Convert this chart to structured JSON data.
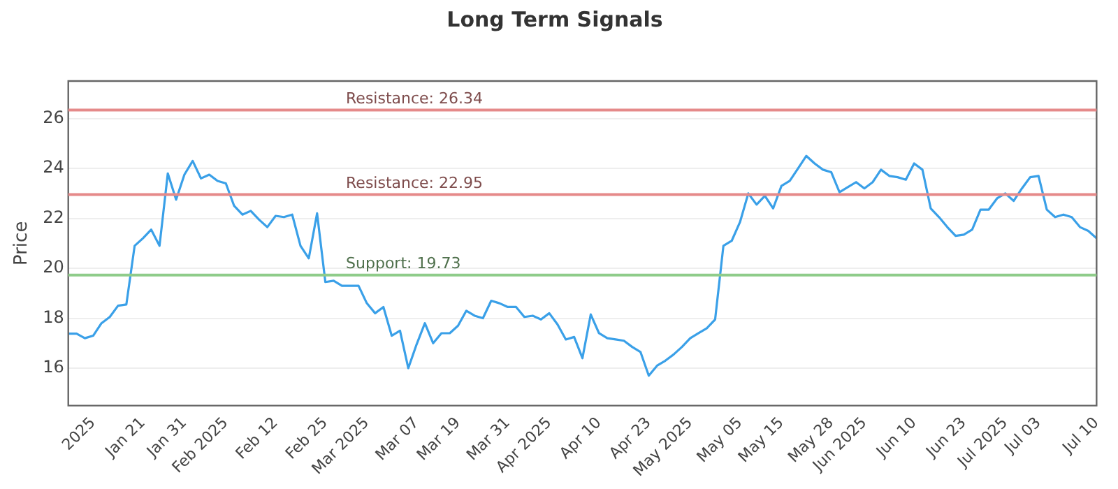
{
  "chart_data": {
    "type": "line",
    "title": "Long Term Signals",
    "ylabel": "Price",
    "categories": [
      null,
      null,
      null,
      "2025",
      null,
      null,
      null,
      null,
      null,
      "Jan 21",
      null,
      null,
      null,
      null,
      "Jan 31",
      null,
      null,
      null,
      null,
      "Feb 2025",
      null,
      null,
      null,
      null,
      null,
      "Feb 12",
      null,
      null,
      null,
      null,
      null,
      "Feb 25",
      null,
      null,
      null,
      null,
      "Mar 2025",
      null,
      null,
      null,
      null,
      null,
      "Mar 07",
      null,
      null,
      null,
      null,
      "Mar 19",
      null,
      null,
      null,
      null,
      null,
      "Mar 31",
      null,
      null,
      null,
      null,
      "Apr 2025",
      null,
      null,
      null,
      null,
      null,
      "Apr 10",
      null,
      null,
      null,
      null,
      null,
      "Apr 23",
      null,
      null,
      null,
      null,
      "May 2025",
      null,
      null,
      null,
      null,
      null,
      "May 05",
      null,
      null,
      null,
      null,
      "May 15",
      null,
      null,
      null,
      null,
      null,
      "May 28",
      null,
      null,
      null,
      "Jun 2025",
      null,
      null,
      null,
      null,
      null,
      "Jun 10",
      null,
      null,
      null,
      null,
      null,
      "Jun 23",
      null,
      null,
      null,
      null,
      "Jul 2025",
      null,
      null,
      null,
      "Jul 03",
      null,
      null,
      null,
      null,
      null,
      null,
      "Jul 10"
    ],
    "series": [
      {
        "color": "#3aa0e8",
        "values": [
          17.38,
          17.38,
          17.2,
          17.3,
          17.8,
          18.05,
          18.5,
          18.55,
          20.9,
          21.2,
          21.55,
          20.9,
          23.8,
          22.75,
          23.75,
          24.3,
          23.6,
          23.75,
          23.5,
          23.4,
          22.5,
          22.15,
          22.3,
          21.95,
          21.65,
          22.1,
          22.05,
          22.15,
          20.9,
          20.4,
          22.2,
          19.45,
          19.5,
          19.3,
          19.3,
          19.3,
          18.6,
          18.2,
          18.45,
          17.3,
          17.5,
          16.0,
          16.95,
          17.8,
          17.0,
          17.4,
          17.4,
          17.7,
          18.3,
          18.1,
          18.0,
          18.7,
          18.6,
          18.45,
          18.45,
          18.05,
          18.1,
          17.95,
          18.2,
          17.75,
          17.15,
          17.25,
          16.4,
          18.15,
          17.4,
          17.2,
          17.15,
          17.1,
          16.85,
          16.65,
          15.7,
          16.1,
          16.3,
          16.55,
          16.85,
          17.2,
          17.4,
          17.6,
          17.95,
          20.9,
          21.1,
          21.85,
          23.0,
          22.55,
          22.9,
          22.4,
          23.3,
          23.5,
          24.0,
          24.5,
          24.2,
          23.95,
          23.85,
          23.05,
          23.25,
          23.45,
          23.2,
          23.45,
          23.95,
          23.7,
          23.65,
          23.55,
          24.2,
          23.95,
          22.4,
          22.05,
          21.65,
          21.3,
          21.35,
          21.55,
          22.35,
          22.35,
          22.8,
          23.0,
          22.7,
          23.2,
          23.65,
          23.7,
          22.35,
          22.05,
          22.15,
          22.05,
          21.65,
          21.5,
          21.2
        ]
      }
    ],
    "ylim": [
      14.5,
      27.5
    ],
    "yticks": [
      16,
      18,
      20,
      22,
      24,
      26
    ],
    "grid": "y",
    "legend": false,
    "marker": "none",
    "line_style": "solid",
    "ref_lines": [
      {
        "axis": "y",
        "value": 26.34,
        "label": "Resistance: 26.34",
        "color": "#e58a8a"
      },
      {
        "axis": "y",
        "value": 22.95,
        "label": "Resistance: 22.95",
        "color": "#e58a8a"
      },
      {
        "axis": "y",
        "value": 19.73,
        "label": "Support: 19.73",
        "color": "#8fcc8a"
      }
    ]
  }
}
